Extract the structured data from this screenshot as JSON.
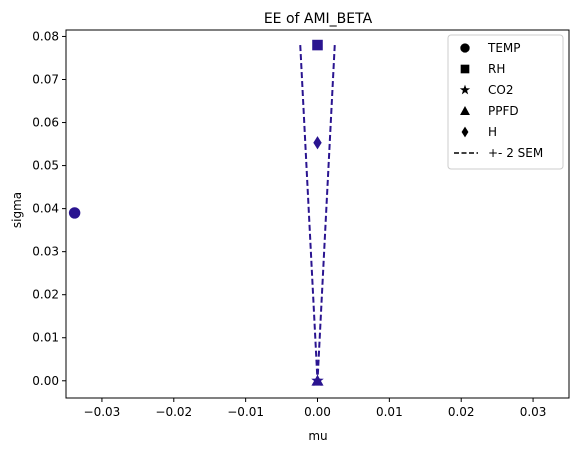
{
  "chart_data": {
    "type": "scatter",
    "title": "EE of AMI_BETA",
    "xlabel": "mu",
    "ylabel": "sigma",
    "xlim": [
      -0.035,
      0.035
    ],
    "ylim": [
      -0.004,
      0.0815
    ],
    "xticks": [
      -0.03,
      -0.02,
      -0.01,
      0.0,
      0.01,
      0.02,
      0.03
    ],
    "xtick_labels": [
      "−0.03",
      "−0.02",
      "−0.01",
      "0.00",
      "0.01",
      "0.02",
      "0.03"
    ],
    "yticks": [
      0.0,
      0.01,
      0.02,
      0.03,
      0.04,
      0.05,
      0.06,
      0.07,
      0.08
    ],
    "ytick_labels": [
      "0.00",
      "0.01",
      "0.02",
      "0.03",
      "0.04",
      "0.05",
      "0.06",
      "0.07",
      "0.08"
    ],
    "grid": false,
    "legend_position": "top-right",
    "marker_color": "#2a1490",
    "series": [
      {
        "name": "TEMP",
        "marker": "circle",
        "x": -0.0338,
        "y": 0.039
      },
      {
        "name": "RH",
        "marker": "square",
        "x": 0.0,
        "y": 0.078
      },
      {
        "name": "CO2",
        "marker": "star",
        "x": 0.0,
        "y": 0.0
      },
      {
        "name": "PPFD",
        "marker": "triangle",
        "x": 0.0,
        "y": 0.0
      },
      {
        "name": "H",
        "marker": "diamond",
        "x": 0.0,
        "y": 0.0553
      }
    ],
    "sem_line": {
      "name": "+- 2 SEM",
      "style": "dashed",
      "left": [
        [
          -0.0024,
          0.078
        ],
        [
          0.0,
          0.0
        ]
      ],
      "right": [
        [
          0.0024,
          0.078
        ],
        [
          0.0,
          0.0
        ]
      ]
    }
  }
}
